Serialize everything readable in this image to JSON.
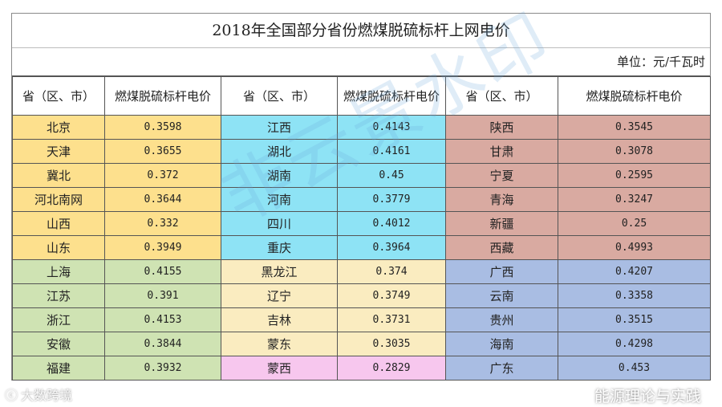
{
  "title": "2018年全国部分省份燃煤脱硫标杆上网电价",
  "unit": "单位：元/千瓦时",
  "headers": [
    "省（区、市）",
    "燃煤脱硫标杆电价",
    "省（区、市）",
    "燃煤脱硫标杆电价",
    "省（区、市）",
    "燃煤脱硫标杆电价"
  ],
  "rows": [
    [
      {
        "p": "北京",
        "v": "0.3598",
        "c": "yellow"
      },
      {
        "p": "江西",
        "v": "0.4143",
        "c": "blue"
      },
      {
        "p": "陕西",
        "v": "0.3545",
        "c": "rose"
      }
    ],
    [
      {
        "p": "天津",
        "v": "0.3655",
        "c": "yellow"
      },
      {
        "p": "湖北",
        "v": "0.4161",
        "c": "blue"
      },
      {
        "p": "甘肃",
        "v": "0.3078",
        "c": "rose"
      }
    ],
    [
      {
        "p": "冀北",
        "v": "0.372",
        "c": "yellow"
      },
      {
        "p": "湖南",
        "v": "0.45",
        "c": "blue"
      },
      {
        "p": "宁夏",
        "v": "0.2595",
        "c": "rose"
      }
    ],
    [
      {
        "p": "河北南网",
        "v": "0.3644",
        "c": "yellow"
      },
      {
        "p": "河南",
        "v": "0.3779",
        "c": "blue"
      },
      {
        "p": "青海",
        "v": "0.3247",
        "c": "rose"
      }
    ],
    [
      {
        "p": "山西",
        "v": "0.332",
        "c": "yellow"
      },
      {
        "p": "四川",
        "v": "0.4012",
        "c": "blue"
      },
      {
        "p": "新疆",
        "v": "0.25",
        "c": "rose"
      }
    ],
    [
      {
        "p": "山东",
        "v": "0.3949",
        "c": "yellow"
      },
      {
        "p": "重庆",
        "v": "0.3964",
        "c": "blue"
      },
      {
        "p": "西藏",
        "v": "0.4993",
        "c": "rose"
      }
    ],
    [
      {
        "p": "上海",
        "v": "0.4155",
        "c": "green"
      },
      {
        "p": "黑龙江",
        "v": "0.374",
        "c": "cream"
      },
      {
        "p": "广西",
        "v": "0.4207",
        "c": "steel"
      }
    ],
    [
      {
        "p": "江苏",
        "v": "0.391",
        "c": "green"
      },
      {
        "p": "辽宁",
        "v": "0.3749",
        "c": "cream"
      },
      {
        "p": "云南",
        "v": "0.3358",
        "c": "steel"
      }
    ],
    [
      {
        "p": "浙江",
        "v": "0.4153",
        "c": "green"
      },
      {
        "p": "吉林",
        "v": "0.3731",
        "c": "cream"
      },
      {
        "p": "贵州",
        "v": "0.3515",
        "c": "steel"
      }
    ],
    [
      {
        "p": "安徽",
        "v": "0.3844",
        "c": "green"
      },
      {
        "p": "蒙东",
        "v": "0.3035",
        "c": "cream"
      },
      {
        "p": "海南",
        "v": "0.4298",
        "c": "steel"
      }
    ],
    [
      {
        "p": "福建",
        "v": "0.3932",
        "c": "green"
      },
      {
        "p": "蒙西",
        "v": "0.2829",
        "c": "pink"
      },
      {
        "p": "广东",
        "v": "0.453",
        "c": "steel"
      }
    ]
  ],
  "watermarks": {
    "center": "非云景水印",
    "left": "大数跨境",
    "right": "能源理论与实践"
  }
}
